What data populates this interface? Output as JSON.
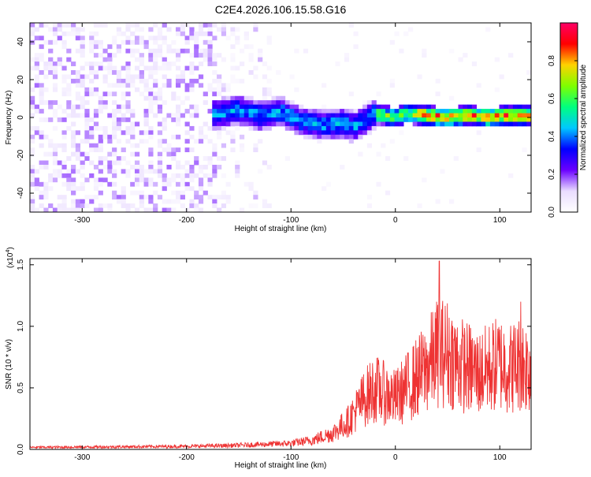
{
  "title": "C2E4.2026.106.15.58.G16",
  "chart_data": [
    {
      "type": "heatmap",
      "title": "C2E4.2026.106.15.58.G16",
      "xlabel": "Height of straight line (km)",
      "ylabel": "Frequency (Hz)",
      "xlim": [
        -350,
        130
      ],
      "ylim": [
        -50,
        50
      ],
      "x_ticks": [
        -300,
        -200,
        -100,
        0,
        100
      ],
      "y_ticks": [
        -40,
        -20,
        0,
        20,
        40
      ],
      "colorbar": {
        "label": "Normalized spectral amplitude",
        "range": [
          0,
          1
        ],
        "ticks": [
          "0.0",
          "0.2",
          "0.4",
          "0.6",
          "0.8"
        ],
        "colors": [
          "#ffffff",
          "#e9dcff",
          "#6a00ff",
          "#0000ff",
          "#00c8ff",
          "#00ff7f",
          "#7fff00",
          "#ffd200",
          "#ff0000",
          "#ff0066"
        ]
      },
      "ridge": {
        "x": [
          -170,
          -150,
          -130,
          -110,
          -90,
          -70,
          -50,
          -40,
          -30,
          -20,
          -10,
          0,
          10,
          30,
          50,
          70,
          90,
          110,
          130
        ],
        "y": [
          2,
          4,
          1,
          3,
          -2,
          -4,
          -3,
          -5,
          -2,
          2,
          1,
          0,
          2,
          1,
          0,
          1,
          0,
          1,
          1
        ]
      }
    },
    {
      "type": "line",
      "xlabel": "Height of straight line (km)",
      "ylabel": "SNR (10 * v/v)",
      "scale_label": "(x10",
      "scale_exp": "4",
      "scale_close": ")",
      "xlim": [
        -350,
        130
      ],
      "ylim": [
        0,
        1.55
      ],
      "x_ticks": [
        -300,
        -200,
        -100,
        0,
        100
      ],
      "y_ticks": [
        "0.0",
        "0.5",
        "1.0",
        "1.5"
      ],
      "series": [
        {
          "name": "SNR",
          "color": "#ee3333",
          "envelope": {
            "x": [
              -350,
              -200,
              -150,
              -100,
              -80,
              -60,
              -45,
              -30,
              -20,
              -10,
              0,
              10,
              20,
              30,
              40,
              50,
              60,
              70,
              80,
              90,
              100,
              110,
              120,
              130
            ],
            "y": [
              0.02,
              0.03,
              0.04,
              0.06,
              0.09,
              0.16,
              0.28,
              0.5,
              0.6,
              0.55,
              0.5,
              0.6,
              0.7,
              0.8,
              0.95,
              0.95,
              0.85,
              0.8,
              0.75,
              0.8,
              0.85,
              0.8,
              0.85,
              0.8
            ]
          },
          "peaks": [
            {
              "x": 42,
              "y": 1.53
            },
            {
              "x": 120,
              "y": 1.2
            }
          ]
        }
      ]
    }
  ]
}
